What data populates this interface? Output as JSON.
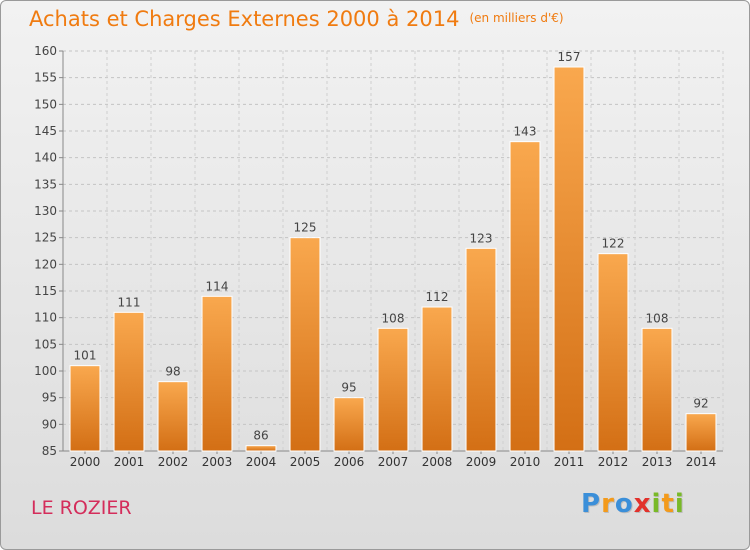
{
  "header": {
    "title": "Achats et Charges Externes 2000 à 2014",
    "unit": "(en milliers d'€)"
  },
  "footer": {
    "commune": "LE ROZIER",
    "logo": [
      "P",
      "r",
      "o",
      "x",
      "i",
      "t",
      "i"
    ]
  },
  "colors": {
    "title": "#f07b10",
    "commune": "#d42d5b",
    "bar_top": "#f9a84e",
    "bar_bottom": "#d36f15",
    "logo": [
      "#3b8fd9",
      "#f39a1b",
      "#3b8fd9",
      "#e2312b",
      "#79b928",
      "#f39a1b",
      "#79b928"
    ]
  },
  "chart_data": {
    "type": "bar",
    "categories": [
      "2000",
      "2001",
      "2002",
      "2003",
      "2004",
      "2005",
      "2006",
      "2007",
      "2008",
      "2009",
      "2010",
      "2011",
      "2012",
      "2013",
      "2014"
    ],
    "values": [
      101,
      111,
      98,
      114,
      86,
      125,
      95,
      108,
      112,
      123,
      143,
      157,
      122,
      108,
      92
    ],
    "title": "Achats et Charges Externes 2000 à 2014",
    "subtitle": "(en milliers d'€)",
    "xlabel": "",
    "ylabel": "",
    "ylim": [
      85,
      160
    ],
    "yticks": [
      85,
      90,
      95,
      100,
      105,
      110,
      115,
      120,
      125,
      130,
      135,
      140,
      145,
      150,
      155,
      160
    ],
    "grid": true,
    "data_labels": true
  }
}
